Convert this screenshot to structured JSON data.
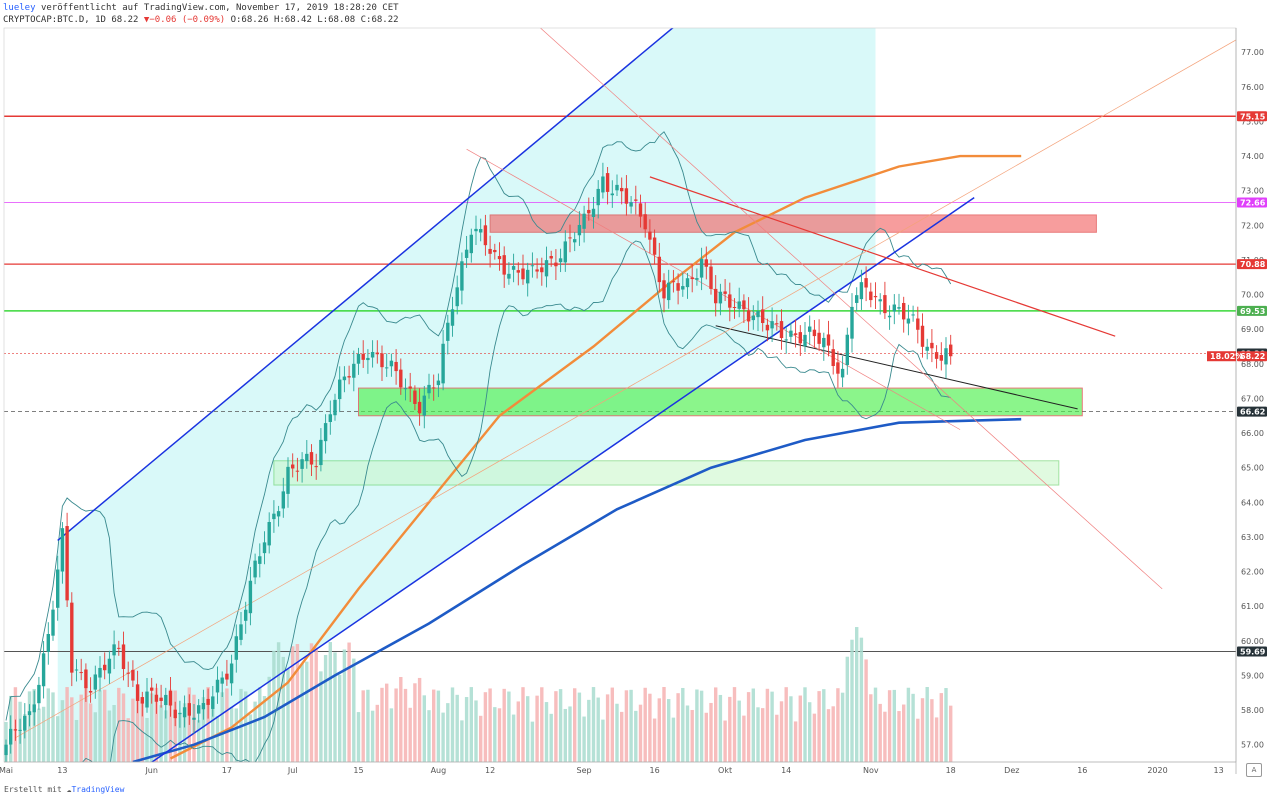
{
  "header": {
    "user": "lueley",
    "published": "veröffentlicht auf TradingView.com, November 17, 2019 18:28:20 CET",
    "symbol": "CRYPTOCAP:BTC.D, 1D",
    "last": "68.22",
    "change_arrow": "▼",
    "change": "−0.06 (−0.09%)",
    "ohlc": "O:68.26 H:68.42 L:68.08 C:68.22"
  },
  "footer": {
    "text": "Erstellt mit",
    "brand": "TradingView"
  },
  "auto_label": "A",
  "colors": {
    "up": "#26a69a",
    "down": "#e53935",
    "channel": "#1a33e0",
    "ema200": "#1e5bc6",
    "ema50": "#f28c3a",
    "bb": "#3a8a8f",
    "cyan_fill": "#b9f4f4",
    "green_zone": "#4ef04e",
    "red_zone": "#f36a6a"
  },
  "chart_data": {
    "type": "line",
    "title": "CRYPTOCAP:BTC.D, 1D",
    "ylim": [
      56.5,
      77.7
    ],
    "y_ticks": [
      57,
      58,
      59,
      60,
      61,
      62,
      63,
      64,
      65,
      66,
      67,
      68,
      69,
      70,
      71,
      72,
      73,
      74,
      75,
      76,
      77
    ],
    "x_ticks": [
      {
        "label": "Mai",
        "day": 0
      },
      {
        "label": "13",
        "day": 12
      },
      {
        "label": "Jun",
        "day": 31
      },
      {
        "label": "17",
        "day": 47
      },
      {
        "label": "Jul",
        "day": 61
      },
      {
        "label": "15",
        "day": 75
      },
      {
        "label": "Aug",
        "day": 92
      },
      {
        "label": "12",
        "day": 103
      },
      {
        "label": "Sep",
        "day": 123
      },
      {
        "label": "16",
        "day": 138
      },
      {
        "label": "Okt",
        "day": 153
      },
      {
        "label": "14",
        "day": 166
      },
      {
        "label": "Nov",
        "day": 184
      },
      {
        "label": "18",
        "day": 201
      },
      {
        "label": "Dez",
        "day": 214
      },
      {
        "label": "16",
        "day": 229
      },
      {
        "label": "2020",
        "day": 245
      },
      {
        "label": "13",
        "day": 258
      }
    ],
    "price_series": {
      "name": "BTC.D",
      "keypoints": [
        [
          0,
          57.0
        ],
        [
          5,
          57.8
        ],
        [
          9,
          60.2
        ],
        [
          12,
          62.9
        ],
        [
          14,
          59.2
        ],
        [
          18,
          58.8
        ],
        [
          24,
          59.7
        ],
        [
          28,
          58.5
        ],
        [
          35,
          58.1
        ],
        [
          42,
          57.9
        ],
        [
          48,
          59.5
        ],
        [
          55,
          63.0
        ],
        [
          60,
          64.8
        ],
        [
          66,
          65.3
        ],
        [
          69,
          66.8
        ],
        [
          74,
          67.9
        ],
        [
          77,
          68.5
        ],
        [
          83,
          67.6
        ],
        [
          88,
          66.9
        ],
        [
          92,
          67.5
        ],
        [
          95,
          69.8
        ],
        [
          99,
          72.0
        ],
        [
          104,
          71.0
        ],
        [
          112,
          70.5
        ],
        [
          119,
          71.4
        ],
        [
          123,
          72.0
        ],
        [
          127,
          73.4
        ],
        [
          131,
          72.8
        ],
        [
          136,
          72.2
        ],
        [
          140,
          70.0
        ],
        [
          145,
          70.3
        ],
        [
          148,
          71.1
        ],
        [
          151,
          69.8
        ],
        [
          157,
          69.7
        ],
        [
          162,
          69.0
        ],
        [
          168,
          68.9
        ],
        [
          174,
          68.6
        ],
        [
          178,
          67.8
        ],
        [
          180,
          69.8
        ],
        [
          183,
          70.1
        ],
        [
          186,
          69.8
        ],
        [
          189,
          69.6
        ],
        [
          193,
          69.1
        ],
        [
          197,
          68.4
        ],
        [
          201,
          68.22
        ]
      ]
    },
    "price_labels": [
      {
        "value": 75.15,
        "text": "75.15",
        "color": "#e53935"
      },
      {
        "value": 72.66,
        "text": "72.66",
        "color": "#e040fb"
      },
      {
        "value": 70.88,
        "text": "70.88",
        "color": "#e53935"
      },
      {
        "value": 69.53,
        "text": "69.53",
        "color": "#4caf50"
      },
      {
        "value": 68.3,
        "text": "68.30",
        "color": "#263238"
      },
      {
        "value": 68.22,
        "text": "68.22",
        "color": "#e53935"
      },
      {
        "value": 66.62,
        "text": "66.62",
        "color": "#263238"
      },
      {
        "value": 59.69,
        "text": "59.69",
        "color": "#263238"
      }
    ],
    "countdown_label": "18.02%",
    "horizontal_lines": [
      {
        "value": 75.15,
        "color": "#e53935",
        "width": 1.5
      },
      {
        "value": 72.66,
        "color": "#e040fb",
        "width": 0.8
      },
      {
        "value": 70.88,
        "color": "#e53935",
        "width": 1.2
      },
      {
        "value": 69.53,
        "color": "#39d839",
        "width": 1.5
      },
      {
        "value": 68.3,
        "color": "#e53935",
        "width": 0.6,
        "dash": "2,2"
      },
      {
        "value": 66.62,
        "color": "#555555",
        "width": 0.8,
        "dash": "4,3"
      },
      {
        "value": 59.69,
        "color": "#555555",
        "width": 1.0
      }
    ],
    "zones": [
      {
        "name": "red-resistance",
        "x0": 103,
        "x1": 232,
        "y0": 71.8,
        "y1": 72.3,
        "fill": "#f36a6a",
        "opacity": 0.65,
        "stroke": "#d33"
      },
      {
        "name": "green-support",
        "x0": 75,
        "x1": 229,
        "y0": 66.5,
        "y1": 67.3,
        "fill": "#4ef04e",
        "opacity": 0.65,
        "stroke": "#d33"
      },
      {
        "name": "light-green-support",
        "x0": 57,
        "x1": 224,
        "y0": 64.5,
        "y1": 65.2,
        "fill": "#c8f7c8",
        "opacity": 0.55,
        "stroke": "#5c5"
      }
    ],
    "channel_lines": [
      {
        "x0": 11,
        "y0": 62.9,
        "x1": 171,
        "y1": 81.0,
        "color": "#1a33e0"
      },
      {
        "x0": 30,
        "y0": 56.4,
        "x1": 206,
        "y1": 72.8,
        "color": "#1a33e0"
      }
    ],
    "trend_lines": [
      {
        "x0": 137,
        "y0": 73.4,
        "x1": 236,
        "y1": 68.8,
        "color": "#e53935",
        "width": 1.2
      },
      {
        "x0": 151,
        "y0": 69.1,
        "x1": 228,
        "y1": 66.7,
        "color": "#222",
        "width": 1.0
      },
      {
        "x0": 108,
        "y0": 78.4,
        "x1": 246,
        "y1": 61.5,
        "color": "#f08080",
        "width": 0.7
      },
      {
        "x0": 98,
        "y0": 74.2,
        "x1": 203,
        "y1": 66.1,
        "color": "#f08080",
        "width": 0.7
      },
      {
        "x0": 2,
        "y0": 57.2,
        "x1": 270,
        "y1": 78.0,
        "color": "#f4a27a",
        "width": 0.7
      }
    ],
    "ema200": [
      [
        27,
        56.5
      ],
      [
        40,
        57.0
      ],
      [
        55,
        57.8
      ],
      [
        70,
        59.0
      ],
      [
        90,
        60.5
      ],
      [
        110,
        62.2
      ],
      [
        130,
        63.8
      ],
      [
        150,
        65.0
      ],
      [
        170,
        65.8
      ],
      [
        190,
        66.3
      ],
      [
        216,
        66.4
      ]
    ],
    "ema50": [
      [
        35,
        56.6
      ],
      [
        48,
        57.5
      ],
      [
        60,
        58.8
      ],
      [
        75,
        61.5
      ],
      [
        90,
        64.0
      ],
      [
        105,
        66.5
      ],
      [
        125,
        68.5
      ],
      [
        140,
        70.2
      ],
      [
        155,
        71.8
      ],
      [
        170,
        72.8
      ],
      [
        190,
        73.7
      ],
      [
        203,
        74.0
      ],
      [
        216,
        74.0
      ]
    ]
  }
}
